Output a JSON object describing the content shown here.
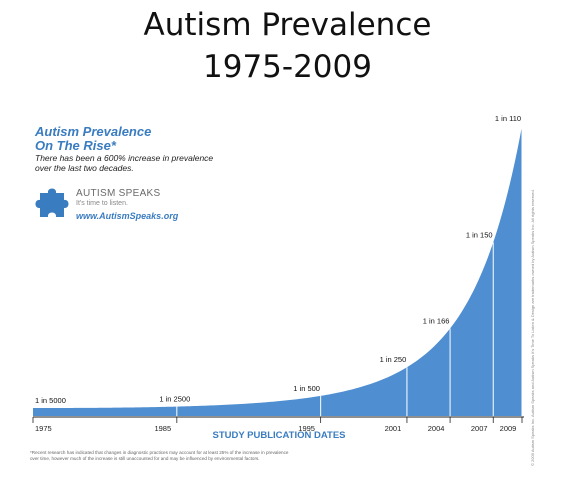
{
  "page": {
    "title_line1": "Autism Prevalence",
    "title_line2": "1975-2009"
  },
  "promo": {
    "title_line1": "Autism Prevalence",
    "title_line2": "On The Rise*",
    "subtitle_line1": "There has been a 600% increase in prevalence",
    "subtitle_line2": "over the last two decades.",
    "brand": "AUTISM SPEAKS",
    "tagline": "It's time to listen.",
    "url": "www.AutismSpeaks.org",
    "puzzle_icon": "puzzle-piece-icon"
  },
  "footnote": {
    "line1": "*Recent research has indicated that changes in diagnostic practices may account for at least 25% of the increase in prevalence",
    "line2": "over time, however much of the increase is still unaccounted for and may be influenced by environmental factors."
  },
  "side_copyright": "© 2009 Autism Speaks Inc. Autism Speaks and Autism Speaks It's Time To Listen & Design are trademarks owned by Autism Speaks Inc. All rights reserved.",
  "colors": {
    "area": "#4f8fd1",
    "accent": "#3a7cc0",
    "axis_label": "#3a7cc0"
  },
  "chart_data": {
    "type": "area",
    "title": "",
    "xlabel": "STUDY PUBLICATION DATES",
    "ylabel": "",
    "xlim": [
      1975,
      2009
    ],
    "x": [
      1975,
      1985,
      1995,
      2001,
      2004,
      2007,
      2009
    ],
    "prevalence_labels": [
      "1 in 5000",
      "1 in 2500",
      "1 in 500",
      "1 in 250",
      "1 in 166",
      "1 in 150",
      "1 in 110"
    ],
    "prevalence_denominators": [
      5000,
      2500,
      500,
      250,
      166,
      150,
      110
    ],
    "x_tick_labels": [
      "1975",
      "1985",
      "1995",
      "2001",
      "2004",
      "2007",
      "2009"
    ],
    "grid": false,
    "legend": "none"
  }
}
